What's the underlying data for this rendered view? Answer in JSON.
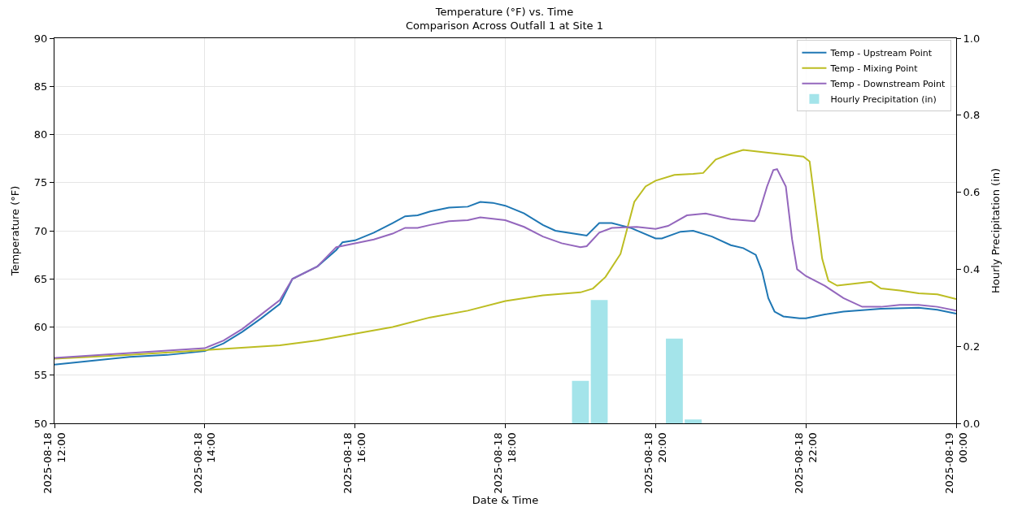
{
  "chart_data": {
    "type": "line",
    "title": "Temperature (°F) vs. Time",
    "subtitle": "Comparison Across Outfall 1 at Site 1",
    "xlabel": "Date & Time",
    "ylabel": "Temperature (°F)",
    "y2label": "Hourly Precipitation (in)",
    "xlim": [
      "2025-08-18T12:00",
      "2025-08-19T00:00"
    ],
    "xticks": [
      {
        "value": "2025-08-18T12:00",
        "label": "2025-08-18\n12:00"
      },
      {
        "value": "2025-08-18T14:00",
        "label": "2025-08-18\n14:00"
      },
      {
        "value": "2025-08-18T16:00",
        "label": "2025-08-18\n16:00"
      },
      {
        "value": "2025-08-18T18:00",
        "label": "2025-08-18\n18:00"
      },
      {
        "value": "2025-08-18T20:00",
        "label": "2025-08-18\n20:00"
      },
      {
        "value": "2025-08-18T22:00",
        "label": "2025-08-18\n22:00"
      },
      {
        "value": "2025-08-19T00:00",
        "label": "2025-08-19\n00:00"
      }
    ],
    "ylim": [
      50,
      90
    ],
    "yticks": [
      50,
      55,
      60,
      65,
      70,
      75,
      80,
      85,
      90
    ],
    "y2lim": [
      0,
      1.0
    ],
    "y2ticks": [
      {
        "value": 0,
        "label": "0.0"
      },
      {
        "value": 0.2,
        "label": "0.2"
      },
      {
        "value": 0.4,
        "label": "0.4"
      },
      {
        "value": 0.6,
        "label": "0.6"
      },
      {
        "value": 0.8,
        "label": "0.8"
      },
      {
        "value": 1.0,
        "label": "1.0"
      }
    ],
    "grid": true,
    "legend": "top right",
    "line_style": "solid",
    "marker": "none",
    "series": [
      {
        "name": "Temp - Upstream Point",
        "color": "#1f77b4",
        "x": [
          "2025-08-18T12:00",
          "2025-08-18T12:30",
          "2025-08-18T13:00",
          "2025-08-18T13:30",
          "2025-08-18T14:00",
          "2025-08-18T14:15",
          "2025-08-18T14:30",
          "2025-08-18T14:45",
          "2025-08-18T15:00",
          "2025-08-18T15:10",
          "2025-08-18T15:30",
          "2025-08-18T15:45",
          "2025-08-18T15:50",
          "2025-08-18T16:00",
          "2025-08-18T16:15",
          "2025-08-18T16:30",
          "2025-08-18T16:40",
          "2025-08-18T16:50",
          "2025-08-18T17:00",
          "2025-08-18T17:15",
          "2025-08-18T17:30",
          "2025-08-18T17:40",
          "2025-08-18T17:50",
          "2025-08-18T18:00",
          "2025-08-18T18:15",
          "2025-08-18T18:30",
          "2025-08-18T18:40",
          "2025-08-18T19:00",
          "2025-08-18T19:05",
          "2025-08-18T19:15",
          "2025-08-18T19:25",
          "2025-08-18T19:40",
          "2025-08-18T20:00",
          "2025-08-18T20:05",
          "2025-08-18T20:20",
          "2025-08-18T20:30",
          "2025-08-18T20:45",
          "2025-08-18T21:00",
          "2025-08-18T21:10",
          "2025-08-18T21:20",
          "2025-08-18T21:25",
          "2025-08-18T21:30",
          "2025-08-18T21:35",
          "2025-08-18T21:42",
          "2025-08-18T21:55",
          "2025-08-18T22:00",
          "2025-08-18T22:15",
          "2025-08-18T22:30",
          "2025-08-18T23:00",
          "2025-08-18T23:30",
          "2025-08-18T23:45",
          "2025-08-19T00:00"
        ],
        "values": [
          56.1,
          56.5,
          56.9,
          57.1,
          57.5,
          58.3,
          59.5,
          60.9,
          62.4,
          65.0,
          66.3,
          68.0,
          68.8,
          69.0,
          69.8,
          70.8,
          71.5,
          71.6,
          72.0,
          72.4,
          72.5,
          73.0,
          72.9,
          72.6,
          71.8,
          70.6,
          70.0,
          69.6,
          69.5,
          70.8,
          70.8,
          70.3,
          69.2,
          69.2,
          69.9,
          70.0,
          69.4,
          68.5,
          68.2,
          67.5,
          65.8,
          63.0,
          61.6,
          61.1,
          60.9,
          60.9,
          61.3,
          61.6,
          61.9,
          62.0,
          61.8,
          61.4
        ]
      },
      {
        "name": "Temp - Mixing Point",
        "color": "#bcbd22",
        "x": [
          "2025-08-18T12:00",
          "2025-08-18T13:00",
          "2025-08-18T14:00",
          "2025-08-18T15:00",
          "2025-08-18T15:30",
          "2025-08-18T16:00",
          "2025-08-18T16:30",
          "2025-08-18T17:00",
          "2025-08-18T17:30",
          "2025-08-18T18:00",
          "2025-08-18T18:30",
          "2025-08-18T19:00",
          "2025-08-18T19:10",
          "2025-08-18T19:20",
          "2025-08-18T19:32",
          "2025-08-18T19:43",
          "2025-08-18T19:52",
          "2025-08-18T20:00",
          "2025-08-18T20:15",
          "2025-08-18T20:30",
          "2025-08-18T20:38",
          "2025-08-18T20:48",
          "2025-08-18T21:00",
          "2025-08-18T21:10",
          "2025-08-18T21:30",
          "2025-08-18T21:45",
          "2025-08-18T21:58",
          "2025-08-18T22:03",
          "2025-08-18T22:13",
          "2025-08-18T22:18",
          "2025-08-18T22:25",
          "2025-08-18T22:45",
          "2025-08-18T22:52",
          "2025-08-18T23:00",
          "2025-08-18T23:15",
          "2025-08-18T23:30",
          "2025-08-18T23:45",
          "2025-08-19T00:00"
        ],
        "values": [
          56.7,
          57.1,
          57.6,
          58.1,
          58.6,
          59.3,
          60.0,
          61.0,
          61.7,
          62.7,
          63.3,
          63.6,
          64.0,
          65.2,
          67.6,
          73.0,
          74.6,
          75.2,
          75.8,
          75.9,
          76.0,
          77.4,
          78.0,
          78.4,
          78.1,
          77.9,
          77.7,
          77.2,
          67.1,
          64.8,
          64.3,
          64.6,
          64.7,
          64.0,
          63.8,
          63.5,
          63.4,
          62.9
        ]
      },
      {
        "name": "Temp - Downstream Point",
        "color": "#9467bd",
        "x": [
          "2025-08-18T12:00",
          "2025-08-18T13:00",
          "2025-08-18T14:00",
          "2025-08-18T14:15",
          "2025-08-18T14:30",
          "2025-08-18T14:45",
          "2025-08-18T15:00",
          "2025-08-18T15:10",
          "2025-08-18T15:30",
          "2025-08-18T15:45",
          "2025-08-18T16:00",
          "2025-08-18T16:15",
          "2025-08-18T16:30",
          "2025-08-18T16:40",
          "2025-08-18T16:50",
          "2025-08-18T17:00",
          "2025-08-18T17:15",
          "2025-08-18T17:30",
          "2025-08-18T17:40",
          "2025-08-18T18:00",
          "2025-08-18T18:15",
          "2025-08-18T18:30",
          "2025-08-18T18:45",
          "2025-08-18T19:00",
          "2025-08-18T19:05",
          "2025-08-18T19:15",
          "2025-08-18T19:25",
          "2025-08-18T19:45",
          "2025-08-18T20:00",
          "2025-08-18T20:10",
          "2025-08-18T20:25",
          "2025-08-18T20:40",
          "2025-08-18T21:00",
          "2025-08-18T21:19",
          "2025-08-18T21:22",
          "2025-08-18T21:29",
          "2025-08-18T21:34",
          "2025-08-18T21:37",
          "2025-08-18T21:44",
          "2025-08-18T21:49",
          "2025-08-18T21:53",
          "2025-08-18T22:00",
          "2025-08-18T22:15",
          "2025-08-18T22:30",
          "2025-08-18T22:45",
          "2025-08-18T23:00",
          "2025-08-18T23:15",
          "2025-08-18T23:30",
          "2025-08-18T23:45",
          "2025-08-19T00:00"
        ],
        "values": [
          56.8,
          57.3,
          57.8,
          58.6,
          59.8,
          61.3,
          62.8,
          65.0,
          66.3,
          68.3,
          68.7,
          69.1,
          69.7,
          70.3,
          70.3,
          70.6,
          71.0,
          71.1,
          71.4,
          71.1,
          70.4,
          69.4,
          68.7,
          68.3,
          68.4,
          69.8,
          70.3,
          70.4,
          70.2,
          70.5,
          71.6,
          71.8,
          71.2,
          71.0,
          71.6,
          74.6,
          76.3,
          76.4,
          74.6,
          69.1,
          66.0,
          65.3,
          64.3,
          63.0,
          62.1,
          62.1,
          62.3,
          62.3,
          62.1,
          61.7
        ]
      },
      {
        "name": "Hourly Precipitation (in)",
        "type": "bar",
        "axis": "y2",
        "color": "#a4e4ea",
        "x": [
          "2025-08-18T19:00",
          "2025-08-18T19:15",
          "2025-08-18T20:15",
          "2025-08-18T20:30"
        ],
        "values": [
          0.11,
          0.32,
          0.22,
          0.01
        ]
      }
    ]
  }
}
